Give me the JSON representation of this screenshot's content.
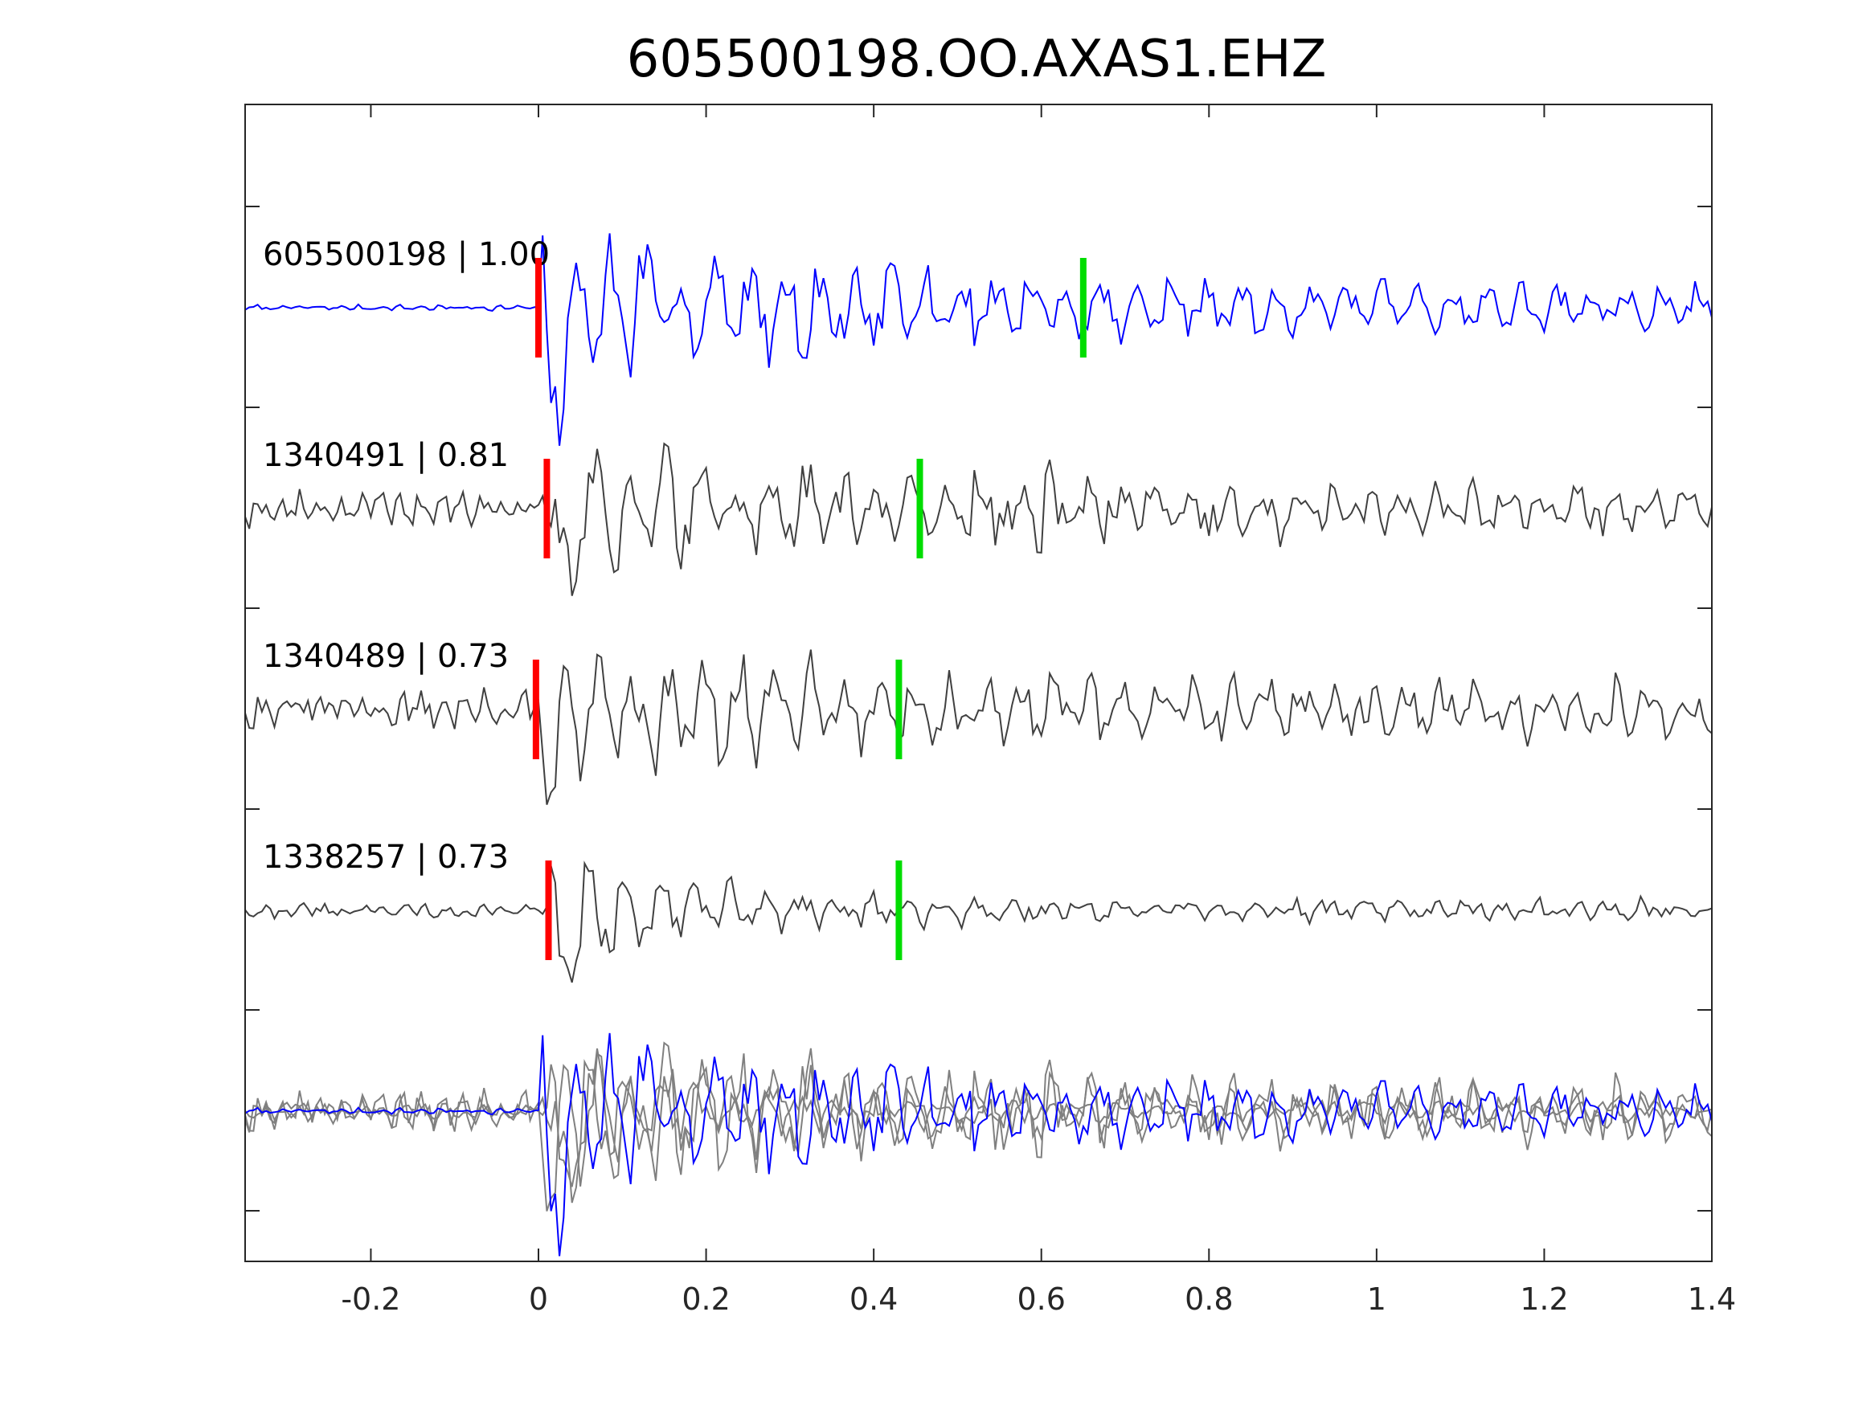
{
  "chart_data": {
    "type": "line",
    "title": "605500198.OO.AXAS1.EHZ",
    "xlabel": "",
    "ylabel": "",
    "xlim": [
      -0.35,
      1.4
    ],
    "x_ticks": [
      -0.2,
      0,
      0.2,
      0.4,
      0.6,
      0.8,
      1,
      1.2,
      1.4
    ],
    "x_tick_labels": [
      "-0.2",
      "0",
      "0.2",
      "0.4",
      "0.6",
      "0.8",
      "1",
      "1.2",
      "1.4"
    ],
    "y_ticks_count": 6,
    "grid": false,
    "colors": {
      "master": "#0000ff",
      "neighbor": "#404040",
      "overlay_neighbor": "#808080",
      "p_pick": "#ff0000",
      "s_pick": "#00dd00",
      "axis": "#262626"
    },
    "traces": [
      {
        "label": "605500198 | 1.00",
        "p_pick": 0.0,
        "s_pick": 0.65,
        "color": "master"
      },
      {
        "label": "1340491 | 0.81",
        "p_pick": 0.01,
        "s_pick": 0.455,
        "color": "neighbor"
      },
      {
        "label": "1340489 | 0.73",
        "p_pick": -0.003,
        "s_pick": 0.43,
        "color": "neighbor"
      },
      {
        "label": "1338257 | 0.73",
        "p_pick": 0.012,
        "s_pick": 0.43,
        "color": "neighbor"
      }
    ],
    "overlay": {
      "description_visible": false,
      "includes_traces": [
        0,
        1,
        2,
        3
      ]
    }
  }
}
